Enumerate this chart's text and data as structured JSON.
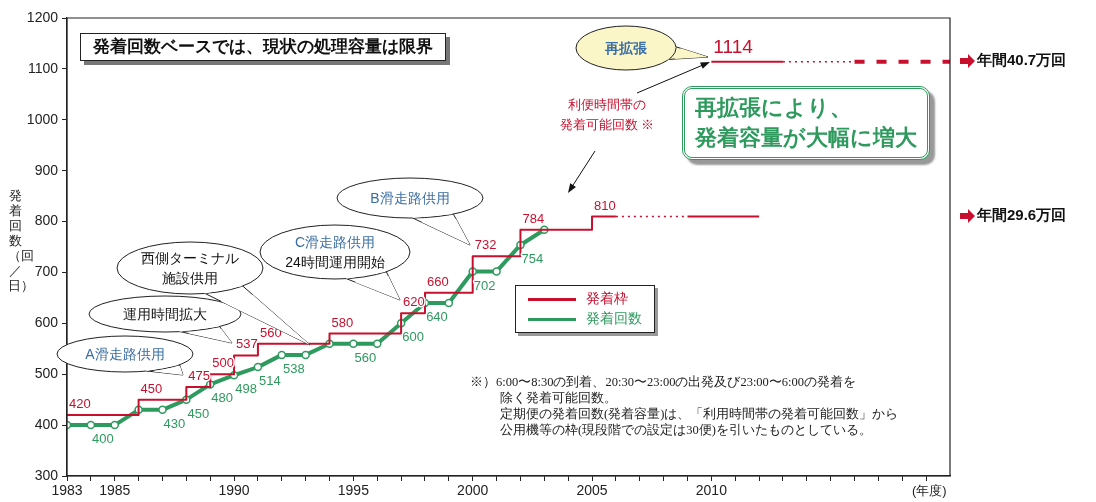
{
  "chart_data": {
    "type": "step",
    "title": "発着回数ベースでは、現状の処理容量は限界",
    "xlabel": "(年度)",
    "ylabel": "発着回数（回／日）",
    "xlim": [
      1983,
      2020
    ],
    "xticks": [
      1983,
      {
        "value": 1984,
        "label": null
      },
      1985,
      {
        "value": 1986,
        "label": null
      },
      {
        "value": 1987,
        "label": null
      },
      {
        "value": 1988,
        "label": null
      },
      {
        "value": 1989,
        "label": null
      },
      1990,
      {
        "value": 1991,
        "label": null
      },
      {
        "value": 1992,
        "label": null
      },
      {
        "value": 1993,
        "label": null
      },
      {
        "value": 1994,
        "label": null
      },
      1995,
      {
        "value": 1996,
        "label": null
      },
      {
        "value": 1997,
        "label": null
      },
      {
        "value": 1998,
        "label": null
      },
      {
        "value": 1999,
        "label": null
      },
      2000,
      {
        "value": 2001,
        "label": null
      },
      {
        "value": 2002,
        "label": null
      },
      {
        "value": 2003,
        "label": null
      },
      {
        "value": 2004,
        "label": null
      },
      2005,
      {
        "value": 2006,
        "label": null
      },
      {
        "value": 2007,
        "label": null
      },
      {
        "value": 2008,
        "label": null
      },
      {
        "value": 2009,
        "label": null
      },
      2010,
      {
        "value": 2011,
        "label": null
      },
      {
        "value": 2012,
        "label": null
      },
      {
        "value": 2013,
        "label": null
      },
      {
        "value": 2014,
        "label": null
      },
      {
        "value": 2015,
        "label": null
      },
      {
        "value": 2016,
        "label": null
      },
      {
        "value": 2017,
        "label": null
      },
      {
        "value": 2018,
        "label": null
      },
      {
        "value": 2019,
        "label": null
      }
    ],
    "ylim": [
      300,
      1200
    ],
    "yticks": [
      300,
      400,
      500,
      600,
      700,
      800,
      900,
      1000,
      1100,
      1200
    ],
    "legend": "center",
    "series": [
      {
        "name": "発着枠",
        "color": "#c8102e",
        "x": [
          1983,
          1986,
          1988,
          1989,
          1990,
          1991,
          1994,
          1997,
          1998,
          2000,
          2002,
          2005,
          2006
        ],
        "values": [
          420,
          450,
          475,
          500,
          537,
          560,
          580,
          620,
          660,
          732,
          784,
          810,
          810
        ],
        "value_labels": [
          "420",
          "450",
          "475",
          "500",
          "537",
          "560",
          "580",
          "620",
          "660",
          "732",
          "784",
          "810",
          null
        ]
      },
      {
        "name": "発着回数",
        "type": "line",
        "color": "#2e9a5e",
        "marker": "circle",
        "x": [
          1983,
          1984,
          1985,
          1986,
          1987,
          1988,
          1989,
          1990,
          1991,
          1992,
          1993,
          1994,
          1995,
          1996,
          1997,
          1998,
          1999,
          2000,
          2001,
          2002,
          2003
        ],
        "values": [
          400,
          400,
          400,
          430,
          430,
          450,
          480,
          498,
          514,
          538,
          538,
          560,
          560,
          560,
          600,
          640,
          640,
          702,
          702,
          754,
          784
        ],
        "value_labels": [
          null,
          "400",
          null,
          null,
          "430",
          "450",
          "480",
          "498",
          "514",
          "538",
          null,
          null,
          "560",
          null,
          "600",
          "640",
          null,
          "702",
          null,
          "754",
          null
        ]
      },
      {
        "type": "line",
        "color": "#c8102e",
        "line_style": "dotted",
        "x": [
          2006,
          2009
        ],
        "values": [
          810,
          810
        ]
      },
      {
        "type": "line",
        "color": "#c8102e",
        "line_style": "solid",
        "x": [
          2009,
          2012
        ],
        "values": [
          810,
          810
        ]
      },
      {
        "type": "line",
        "color": "#c8102e",
        "line_style": "solid",
        "x": [
          2010,
          2013
        ],
        "values": [
          1114,
          1114
        ],
        "value_labels": [
          "1114",
          null
        ]
      },
      {
        "type": "line",
        "color": "#c8102e",
        "line_style": "dotted",
        "x": [
          2013,
          2016
        ],
        "values": [
          1114,
          1114
        ]
      },
      {
        "type": "line",
        "color": "#c8102e",
        "line_style": "dashed",
        "x": [
          2016,
          2020
        ],
        "values": [
          1114,
          1114
        ]
      }
    ],
    "annotations": [
      "A滑走路供用",
      "運用時間拡大",
      "西側ターミナル施設供用",
      "C滑走路供用24時間運用開始",
      "B滑走路供用",
      "再拡張",
      "利便時間帯の発着可能回数 ※",
      "再拡張により、発着容量が大幅に増大",
      "年間40.7万回",
      "年間29.6万回",
      "※）6:00〜8:30の到着、20:30〜23:00の出発及び23:00〜6:00の発着を除く発着可能回数。定期便の発着回数(発着容量)は、「利用時間帯の発着可能回数」から公用機等の枠(現段階での設定は30便)を引いたものとしている。"
    ]
  }
}
